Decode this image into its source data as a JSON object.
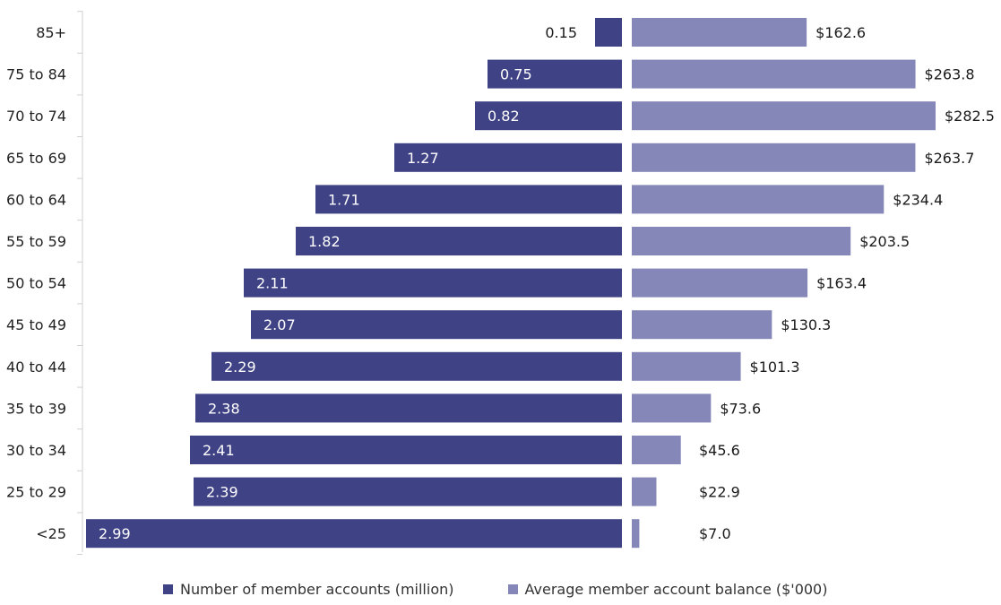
{
  "chart_data": {
    "type": "bar",
    "orientation": "horizontal",
    "layout": "back-to-back",
    "categories": [
      "85+",
      "75 to 84",
      "70 to 74",
      "65 to 69",
      "60 to 64",
      "55 to 59",
      "50 to 54",
      "45 to 49",
      "40 to 44",
      "35 to 39",
      "30 to 34",
      "25 to 29",
      "<25"
    ],
    "series": [
      {
        "name": "Number of member accounts (million)",
        "color": "#3f4285",
        "direction": "left",
        "values": [
          0.15,
          0.75,
          0.82,
          1.27,
          1.71,
          1.82,
          2.11,
          2.07,
          2.29,
          2.38,
          2.41,
          2.39,
          2.99
        ],
        "labels": [
          "0.15",
          "0.75",
          "0.82",
          "1.27",
          "1.71",
          "1.82",
          "2.11",
          "2.07",
          "2.29",
          "2.38",
          "2.41",
          "2.39",
          "2.99"
        ]
      },
      {
        "name": "Average member account balance ($'000)",
        "color": "#8587b8",
        "direction": "right",
        "values": [
          162.6,
          263.8,
          282.5,
          263.7,
          234.4,
          203.5,
          163.4,
          130.3,
          101.3,
          73.6,
          45.6,
          22.9,
          7.0
        ],
        "labels": [
          "$162.6",
          "$263.8",
          "$282.5",
          "$263.7",
          "$234.4",
          "$203.5",
          "$163.4",
          "$130.3",
          "$101.3",
          "$73.6",
          "$45.6",
          "$22.9",
          "$7.0"
        ]
      }
    ],
    "left_range": [
      0,
      2.99
    ],
    "right_range": [
      0,
      282.5
    ],
    "legend": "bottom",
    "grid": false
  }
}
